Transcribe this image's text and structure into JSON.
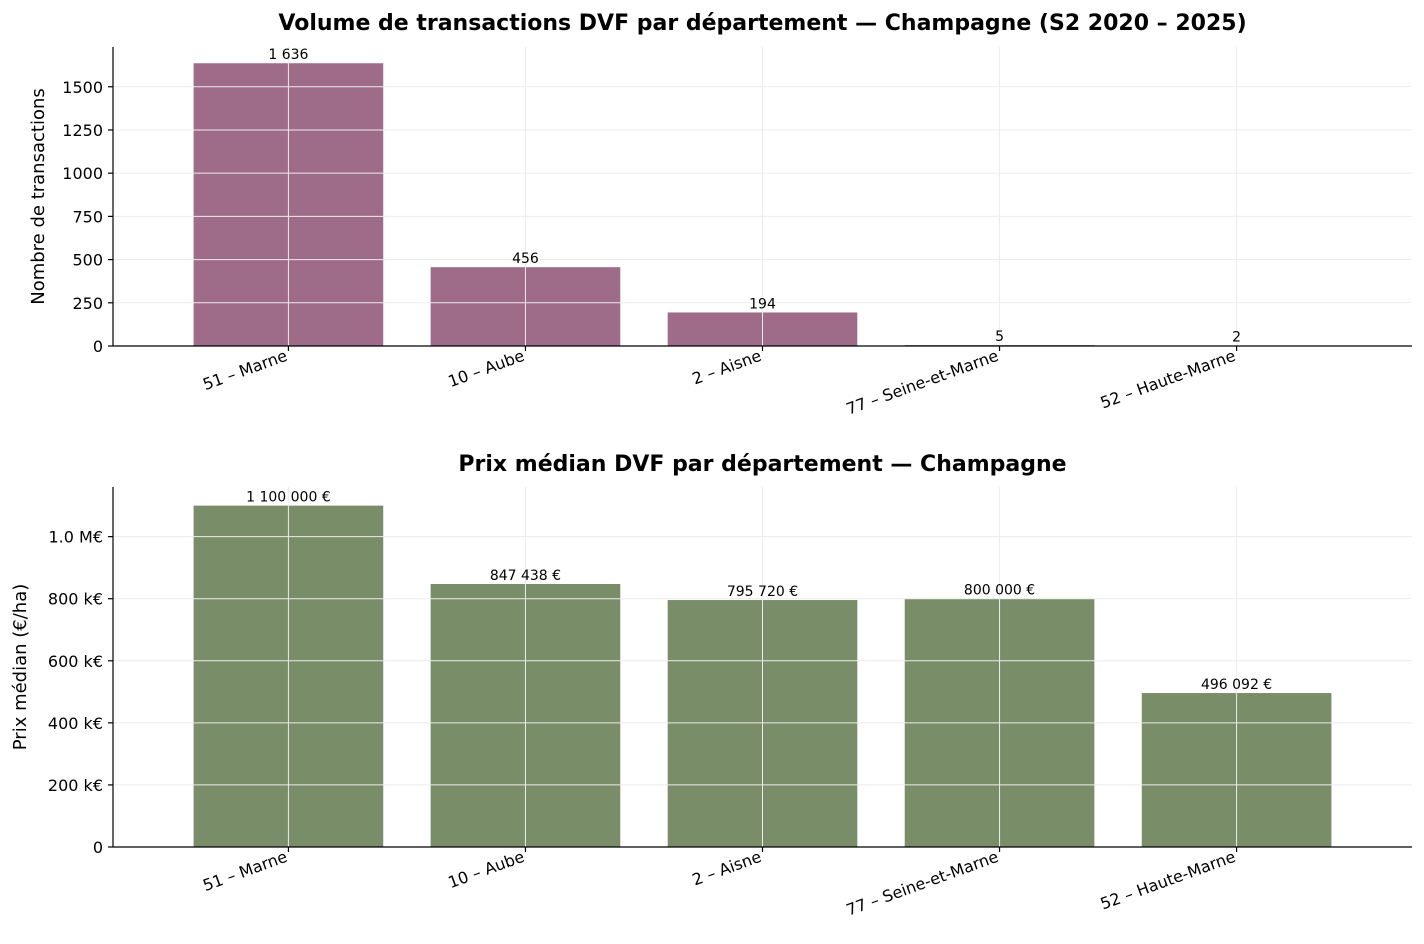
{
  "chart_data": [
    {
      "type": "bar",
      "title": "Volume de transactions DVF par département — Champagne (S2 2020 – 2025)",
      "xlabel": "",
      "ylabel": "Nombre de transactions",
      "categories": [
        "51 – Marne",
        "10 – Aube",
        "2 – Aisne",
        "77 – Seine-et-Marne",
        "52 – Haute-Marne"
      ],
      "values": [
        1636,
        456,
        194,
        5,
        2
      ],
      "value_labels": [
        "1 636",
        "456",
        "194",
        "5",
        "2"
      ],
      "ylim": [
        0,
        1730
      ],
      "yticks": [
        0,
        250,
        500,
        750,
        1000,
        1250,
        1500
      ],
      "ytick_labels": [
        "0",
        "250",
        "500",
        "750",
        "1000",
        "1250",
        "1500"
      ],
      "color": "#9e6b89",
      "grid": true
    },
    {
      "type": "bar",
      "title": "Prix médian DVF par département — Champagne",
      "xlabel": "",
      "ylabel": "Prix médian (€/ha)",
      "categories": [
        "51 – Marne",
        "10 – Aube",
        "2 – Aisne",
        "77 – Seine-et-Marne",
        "52 – Haute-Marne"
      ],
      "values": [
        1100000,
        847438,
        795720,
        800000,
        496092
      ],
      "value_labels": [
        "1 100 000 €",
        "847 438 €",
        "795 720 €",
        "800 000 €",
        "496 092 €"
      ],
      "ylim": [
        0,
        1160000
      ],
      "yticks": [
        0,
        200000,
        400000,
        600000,
        800000,
        1000000
      ],
      "ytick_labels": [
        "0",
        "200 k€",
        "400 k€",
        "600 k€",
        "800 k€",
        "1.0 M€"
      ],
      "color": "#7a8d69",
      "grid": true
    }
  ]
}
